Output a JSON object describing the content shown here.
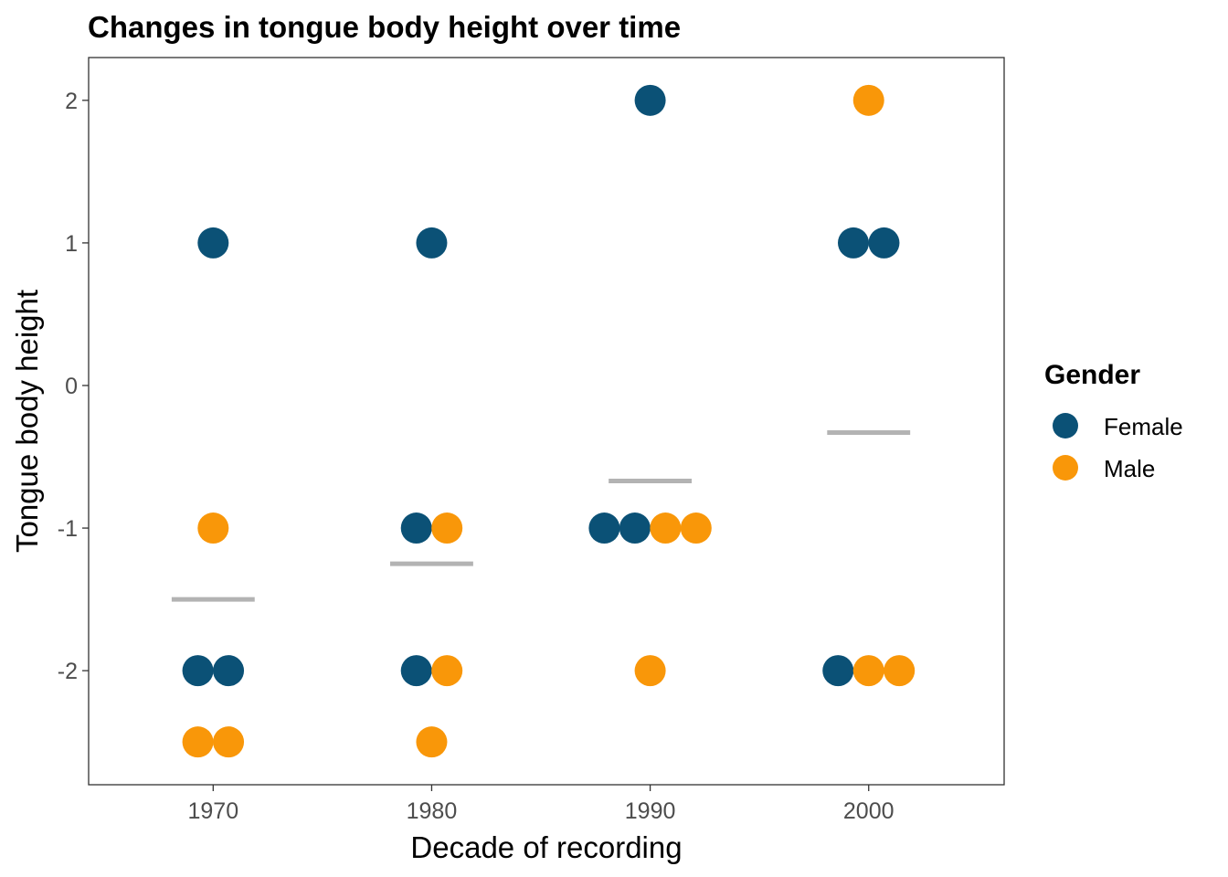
{
  "chart_data": {
    "type": "scatter",
    "title": "Changes in tongue body height over time",
    "xlabel": "Decade of recording",
    "ylabel": "Tongue body height",
    "x_ticks": [
      "1970",
      "1980",
      "1990",
      "2000"
    ],
    "y_ticks": [
      "-2",
      "-1",
      "0",
      "1",
      "2"
    ],
    "y_tick_values": [
      -2,
      -1,
      0,
      1,
      2
    ],
    "xlim": [
      1964.3,
      2006.2
    ],
    "ylim": [
      -2.8,
      2.3
    ],
    "grid": false,
    "legend": {
      "title": "Gender",
      "position": "right",
      "entries": [
        {
          "name": "Female",
          "color": "#0b5176"
        },
        {
          "name": "Male",
          "color": "#f99709"
        }
      ]
    },
    "mean_line_color": "#b3b3b3",
    "means": [
      {
        "x": 1970,
        "y": -1.5
      },
      {
        "x": 1980,
        "y": -1.25
      },
      {
        "x": 1990,
        "y": -0.67
      },
      {
        "x": 2000,
        "y": -0.33
      }
    ],
    "points": [
      {
        "x": 1970,
        "offset": 0,
        "y": 1,
        "gender": "Female"
      },
      {
        "x": 1970,
        "offset": 0,
        "y": -1,
        "gender": "Male"
      },
      {
        "x": 1970,
        "offset": -0.7,
        "y": -2,
        "gender": "Female"
      },
      {
        "x": 1970,
        "offset": 0.7,
        "y": -2,
        "gender": "Female"
      },
      {
        "x": 1970,
        "offset": -0.7,
        "y": -2.5,
        "gender": "Male"
      },
      {
        "x": 1970,
        "offset": 0.7,
        "y": -2.5,
        "gender": "Male"
      },
      {
        "x": 1980,
        "offset": 0,
        "y": 1,
        "gender": "Female"
      },
      {
        "x": 1980,
        "offset": -0.7,
        "y": -1,
        "gender": "Female"
      },
      {
        "x": 1980,
        "offset": 0.7,
        "y": -1,
        "gender": "Male"
      },
      {
        "x": 1980,
        "offset": -0.7,
        "y": -2,
        "gender": "Female"
      },
      {
        "x": 1980,
        "offset": 0.7,
        "y": -2,
        "gender": "Male"
      },
      {
        "x": 1980,
        "offset": 0,
        "y": -2.5,
        "gender": "Male"
      },
      {
        "x": 1990,
        "offset": 0,
        "y": 2,
        "gender": "Female"
      },
      {
        "x": 1990,
        "offset": -2.1,
        "y": -1,
        "gender": "Female"
      },
      {
        "x": 1990,
        "offset": -0.7,
        "y": -1,
        "gender": "Female"
      },
      {
        "x": 1990,
        "offset": 0.7,
        "y": -1,
        "gender": "Male"
      },
      {
        "x": 1990,
        "offset": 2.1,
        "y": -1,
        "gender": "Male"
      },
      {
        "x": 1990,
        "offset": 0,
        "y": -2,
        "gender": "Male"
      },
      {
        "x": 2000,
        "offset": 0,
        "y": 2,
        "gender": "Male"
      },
      {
        "x": 2000,
        "offset": -0.7,
        "y": 1,
        "gender": "Female"
      },
      {
        "x": 2000,
        "offset": 0.7,
        "y": 1,
        "gender": "Female"
      },
      {
        "x": 2000,
        "offset": -1.4,
        "y": -2,
        "gender": "Female"
      },
      {
        "x": 2000,
        "offset": 0,
        "y": -2,
        "gender": "Male"
      },
      {
        "x": 2000,
        "offset": 1.4,
        "y": -2,
        "gender": "Male"
      }
    ]
  }
}
